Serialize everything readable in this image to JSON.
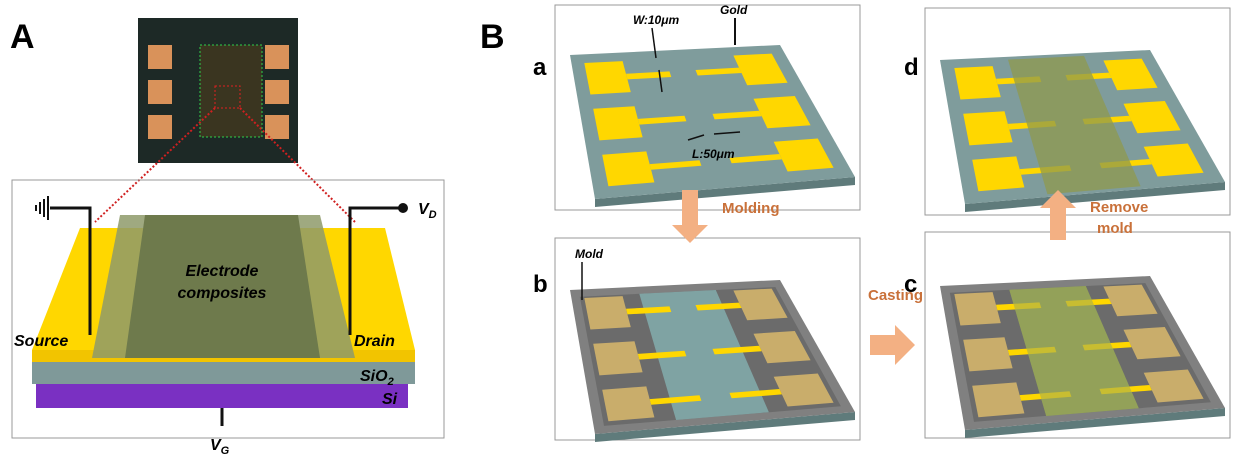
{
  "panel_a": {
    "label": "A",
    "electrode_label": [
      "Electrode",
      "composites"
    ],
    "source": "Source",
    "drain": "Drain",
    "sio2": {
      "main": "SiO",
      "sub": "2"
    },
    "si": "Si",
    "vd": {
      "main": "V",
      "sub": "D"
    },
    "vg": {
      "main": "V",
      "sub": "G"
    }
  },
  "panel_b": {
    "label": "B",
    "steps": [
      "a",
      "b",
      "c",
      "d"
    ],
    "width_label": "W:10μm",
    "gold_label": "Gold",
    "length_label": "L:50μm",
    "molding": "Molding",
    "mold_label": "Mold",
    "casting": "Casting",
    "remove_mold": [
      "Remove",
      "mold"
    ]
  }
}
